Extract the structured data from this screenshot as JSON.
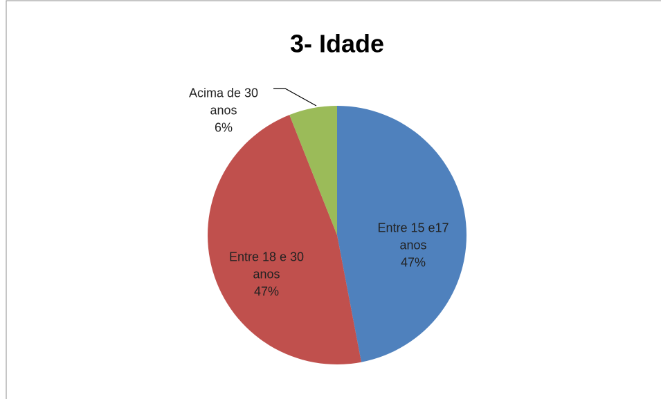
{
  "chart_data": {
    "type": "pie",
    "title": "3- Idade",
    "categories": [
      "Entre 15 e17 anos",
      "Entre 18 e 30 anos",
      "Acima de 30 anos"
    ],
    "values": [
      47,
      47,
      6
    ],
    "value_labels": [
      "47%",
      "47%",
      "6%"
    ],
    "colors": [
      "#4f81bd",
      "#c0504d",
      "#9bbb59"
    ]
  }
}
